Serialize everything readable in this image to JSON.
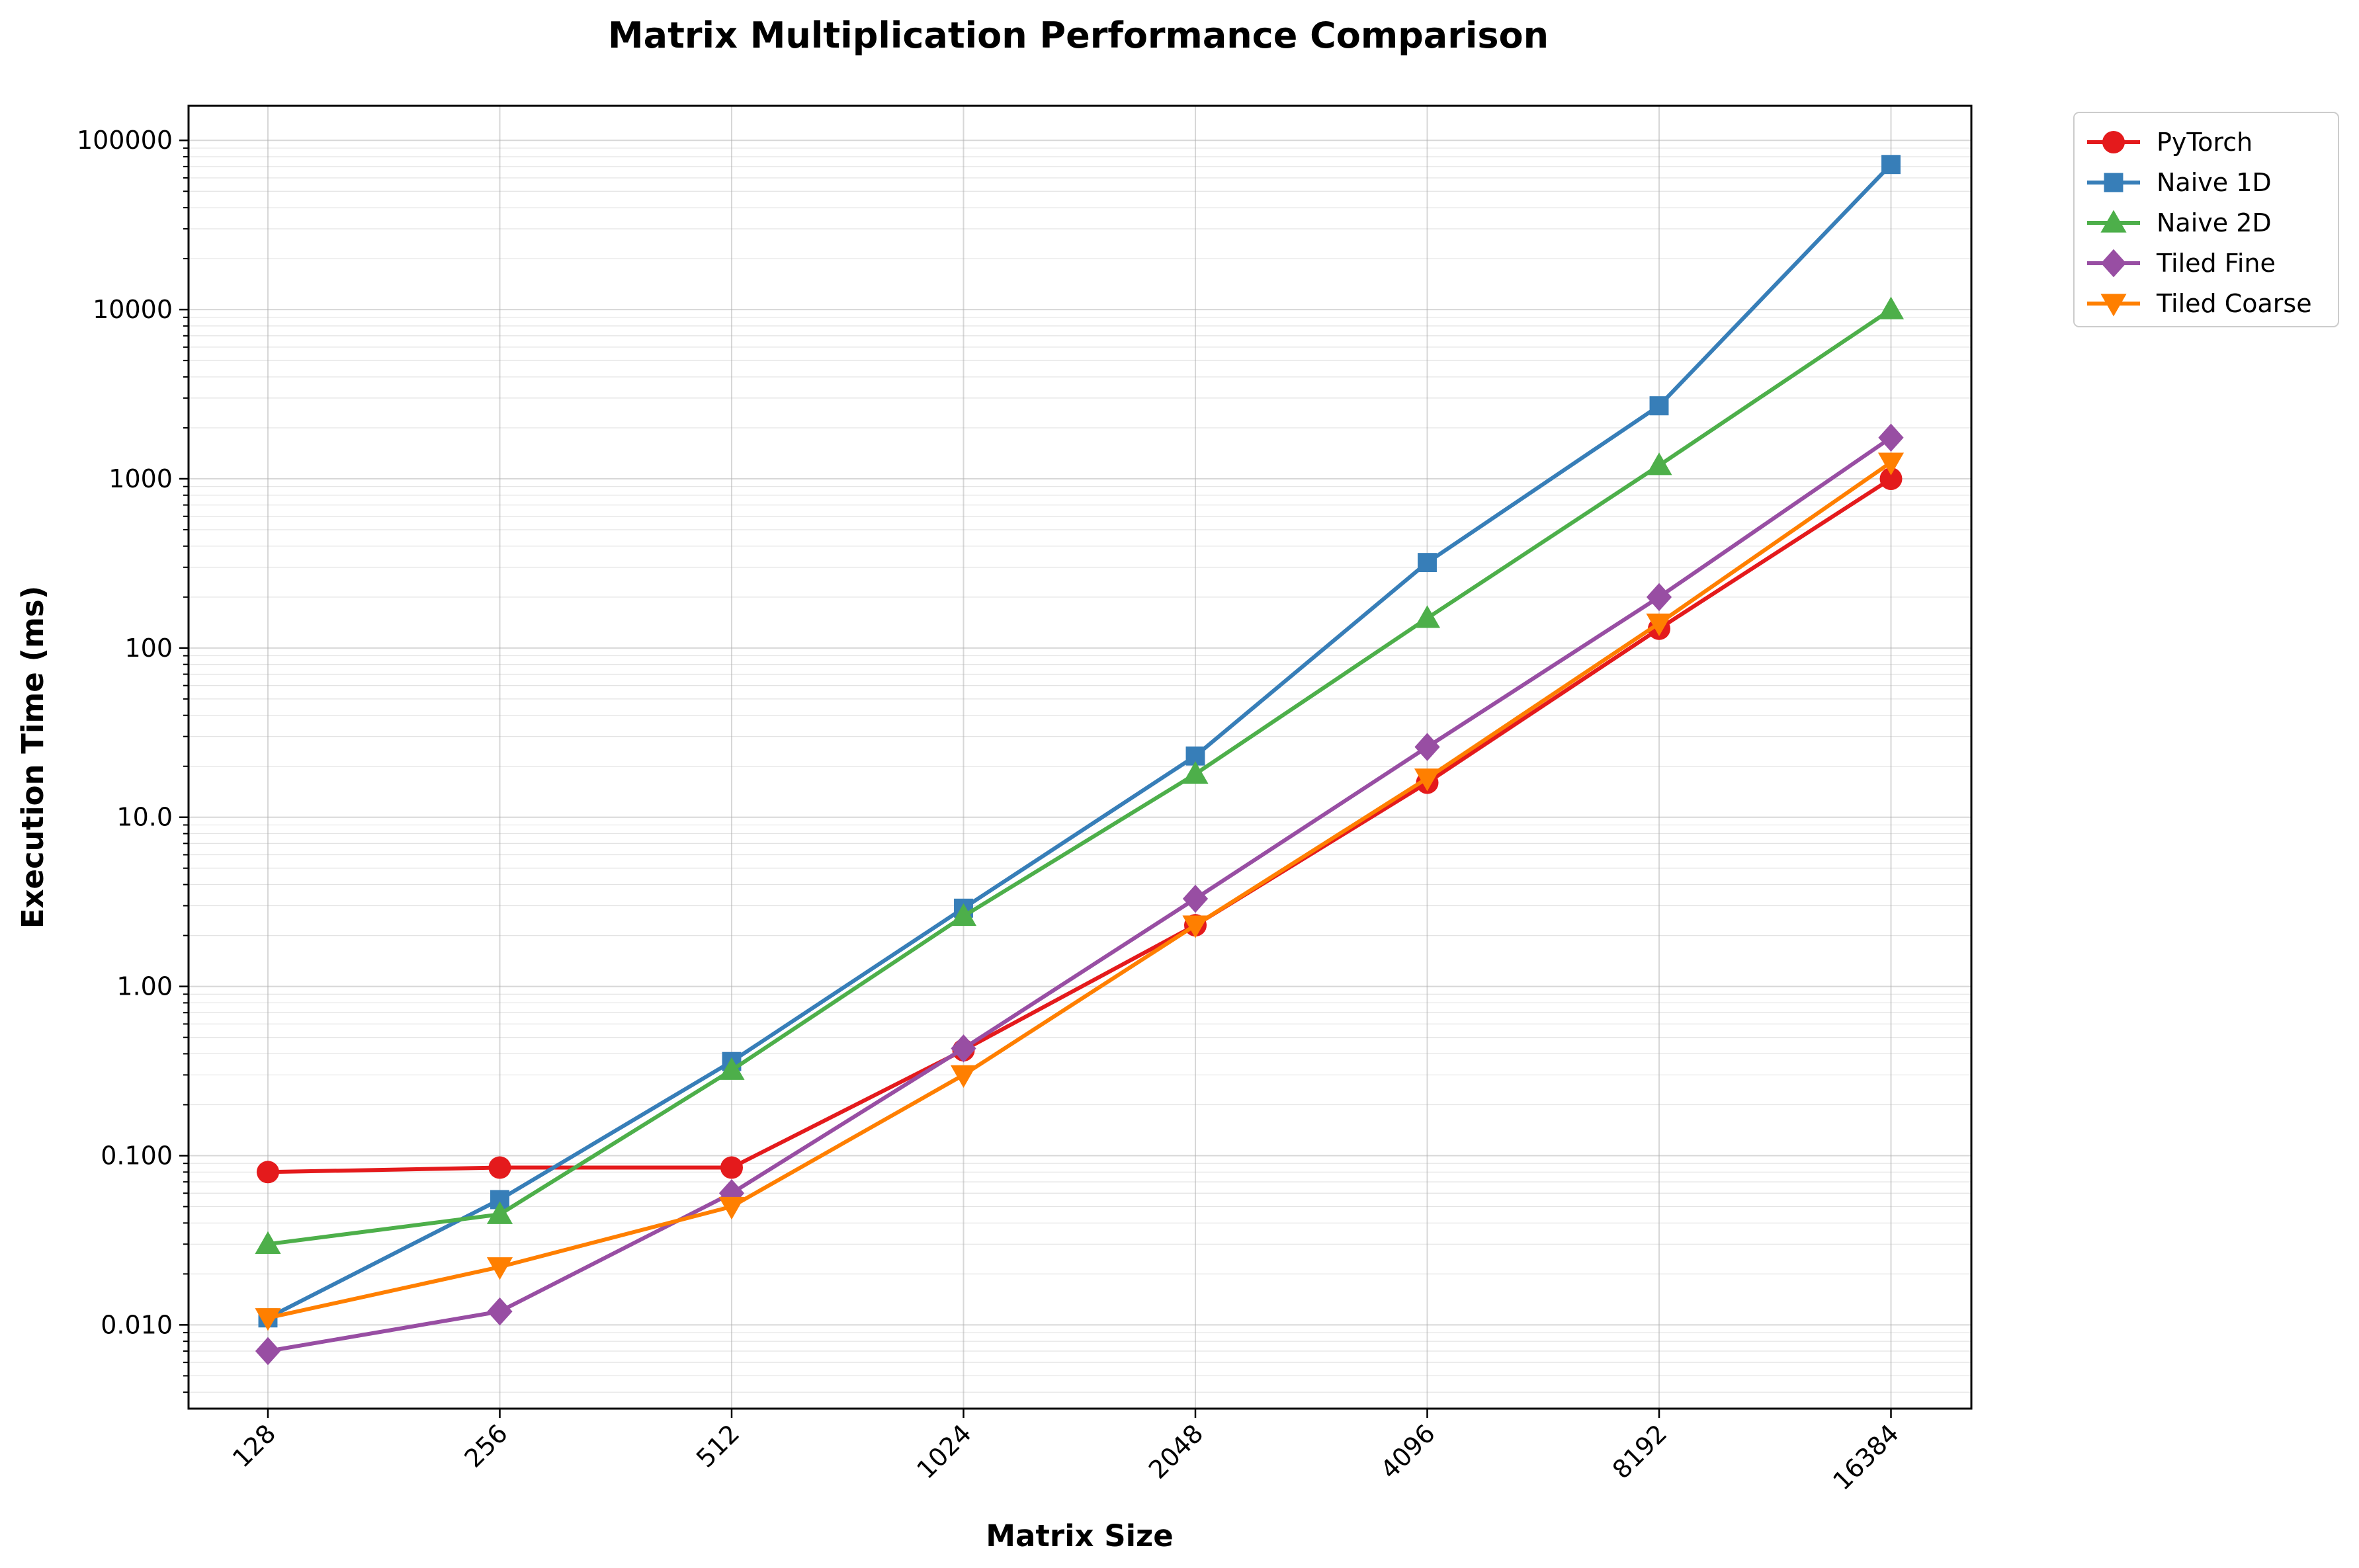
{
  "chart_data": {
    "type": "line",
    "title": "Matrix Multiplication Performance Comparison",
    "xlabel": "Matrix Size",
    "ylabel": "Execution Time (ms)",
    "x_scale": "categorical",
    "y_scale": "log",
    "ylim": [
      0.0032,
      160000
    ],
    "grid": true,
    "legend_position": "outside-top-right",
    "categories": [
      "128",
      "256",
      "512",
      "1024",
      "2048",
      "4096",
      "8192",
      "16384"
    ],
    "y_ticks": [
      {
        "value": 0.01,
        "label": "0.010"
      },
      {
        "value": 0.1,
        "label": "0.100"
      },
      {
        "value": 1,
        "label": "1.00"
      },
      {
        "value": 10,
        "label": "10.0"
      },
      {
        "value": 100,
        "label": "100"
      },
      {
        "value": 1000,
        "label": "1000"
      },
      {
        "value": 10000,
        "label": "10000"
      },
      {
        "value": 100000,
        "label": "100000"
      }
    ],
    "series": [
      {
        "name": "PyTorch",
        "color": "#e41a1c",
        "marker": "circle",
        "values": [
          0.08,
          0.085,
          0.085,
          0.42,
          2.3,
          16,
          130,
          1000
        ]
      },
      {
        "name": "Naive 1D",
        "color": "#377eb8",
        "marker": "square",
        "values": [
          0.011,
          0.055,
          0.36,
          2.9,
          23,
          320,
          2700,
          72000
        ]
      },
      {
        "name": "Naive 2D",
        "color": "#4daf4a",
        "marker": "triangle-up",
        "values": [
          0.03,
          0.045,
          0.32,
          2.6,
          18,
          150,
          1200,
          10000
        ]
      },
      {
        "name": "Tiled Fine",
        "color": "#984ea3",
        "marker": "diamond",
        "values": [
          0.007,
          0.012,
          0.06,
          0.43,
          3.3,
          26,
          200,
          1750
        ]
      },
      {
        "name": "Tiled Coarse",
        "color": "#ff7f00",
        "marker": "triangle-down",
        "values": [
          0.011,
          0.022,
          0.05,
          0.3,
          2.3,
          17,
          140,
          1250
        ]
      }
    ]
  }
}
